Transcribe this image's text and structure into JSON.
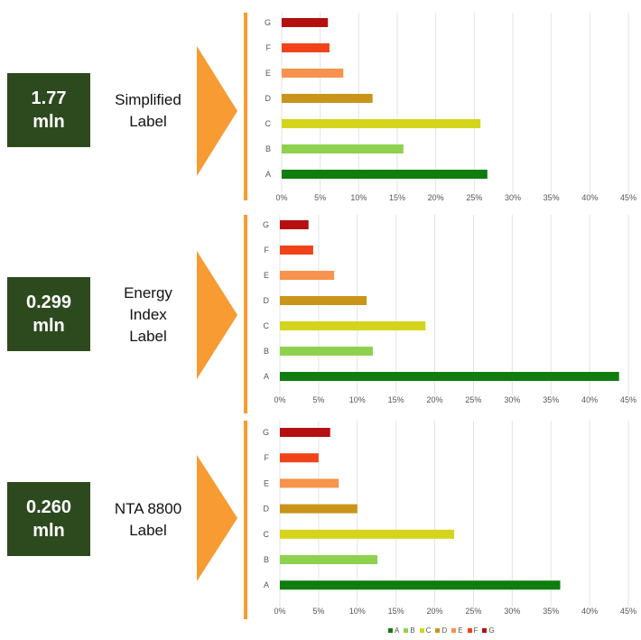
{
  "colors": {
    "badge_bg": "#2d4a1e",
    "arrow": "#f79b32",
    "A": "#0f7d0f",
    "B": "#8fd14f",
    "C": "#d4d41c",
    "D": "#c8951a",
    "E": "#f7934c",
    "F": "#f0431a",
    "G": "#b3100f"
  },
  "panels": [
    {
      "badge": [
        "1.77",
        "mln"
      ],
      "label": [
        "Simplified",
        "Label"
      ]
    },
    {
      "badge": [
        "0.299",
        "mln"
      ],
      "label": [
        "Energy",
        "Index",
        "Label"
      ]
    },
    {
      "badge": [
        "0.260",
        "mln"
      ],
      "label": [
        "NTA 8800",
        "Label"
      ]
    }
  ],
  "chart_data": [
    {
      "type": "bar",
      "orientation": "horizontal",
      "categories": [
        "G",
        "F",
        "E",
        "D",
        "C",
        "B",
        "A"
      ],
      "values": [
        6,
        6.2,
        8,
        11.8,
        25.8,
        15.8,
        26.7
      ],
      "xlim": [
        0,
        45
      ],
      "xticks": [
        "0%",
        "5%",
        "10%",
        "15%",
        "20%",
        "25%",
        "30%",
        "35%",
        "40%",
        "45%"
      ],
      "grid": true
    },
    {
      "type": "bar",
      "orientation": "horizontal",
      "categories": [
        "G",
        "F",
        "E",
        "D",
        "C",
        "B",
        "A"
      ],
      "values": [
        3.7,
        4.3,
        7,
        11.2,
        18.8,
        12,
        43.8
      ],
      "xlim": [
        0,
        45
      ],
      "xticks": [
        "0%",
        "5%",
        "10%",
        "15%",
        "20%",
        "25%",
        "30%",
        "35%",
        "40%",
        "45%"
      ],
      "grid": true
    },
    {
      "type": "bar",
      "orientation": "horizontal",
      "categories": [
        "G",
        "F",
        "E",
        "D",
        "C",
        "B",
        "A"
      ],
      "values": [
        6.5,
        5,
        7.6,
        10,
        22.5,
        12.6,
        36.2
      ],
      "xlim": [
        0,
        45
      ],
      "xticks": [
        "0%",
        "5%",
        "10%",
        "15%",
        "20%",
        "25%",
        "30%",
        "35%",
        "40%",
        "45%"
      ],
      "grid": true
    }
  ],
  "legend": [
    "A",
    "B",
    "C",
    "D",
    "E",
    "F",
    "G"
  ]
}
